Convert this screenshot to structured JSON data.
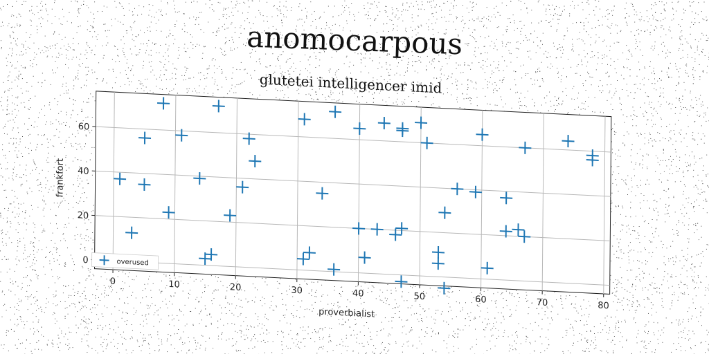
{
  "title": "anomocarpous",
  "chart_data": {
    "type": "scatter",
    "subtitle": "glutetei intelligencer imid",
    "xlabel": "proverbialist",
    "ylabel": "frankfort",
    "xlim": [
      -3,
      81
    ],
    "ylim": [
      -4,
      76
    ],
    "xticks": [
      0,
      10,
      20,
      30,
      40,
      50,
      60,
      70,
      80
    ],
    "yticks": [
      0,
      20,
      40,
      60
    ],
    "grid": true,
    "legend_position": "lower-left",
    "marker": "plus",
    "color": "#1f77b4",
    "series": [
      {
        "name": "overused",
        "x": [
          8,
          17,
          36,
          44,
          47,
          50,
          60,
          74,
          31,
          40,
          47,
          51,
          67,
          78,
          5,
          11,
          22,
          78,
          23,
          56,
          59,
          64,
          1,
          5,
          14,
          21,
          34,
          54,
          9,
          19,
          47,
          64,
          66,
          67,
          3,
          16,
          15,
          31,
          32,
          36,
          40,
          41,
          43,
          46,
          53,
          53,
          61,
          47,
          54
        ],
        "y": [
          72,
          72,
          72,
          68,
          66,
          69,
          65,
          64,
          68,
          65,
          65,
          60,
          60,
          58,
          56,
          58,
          58,
          56,
          48,
          40,
          39,
          37,
          37,
          35,
          39,
          36,
          35,
          29,
          23,
          23,
          21,
          22,
          23,
          20,
          13,
          5,
          3,
          5,
          8,
          1,
          20,
          7,
          20,
          18,
          11,
          6,
          5,
          -3,
          -5
        ]
      }
    ]
  }
}
